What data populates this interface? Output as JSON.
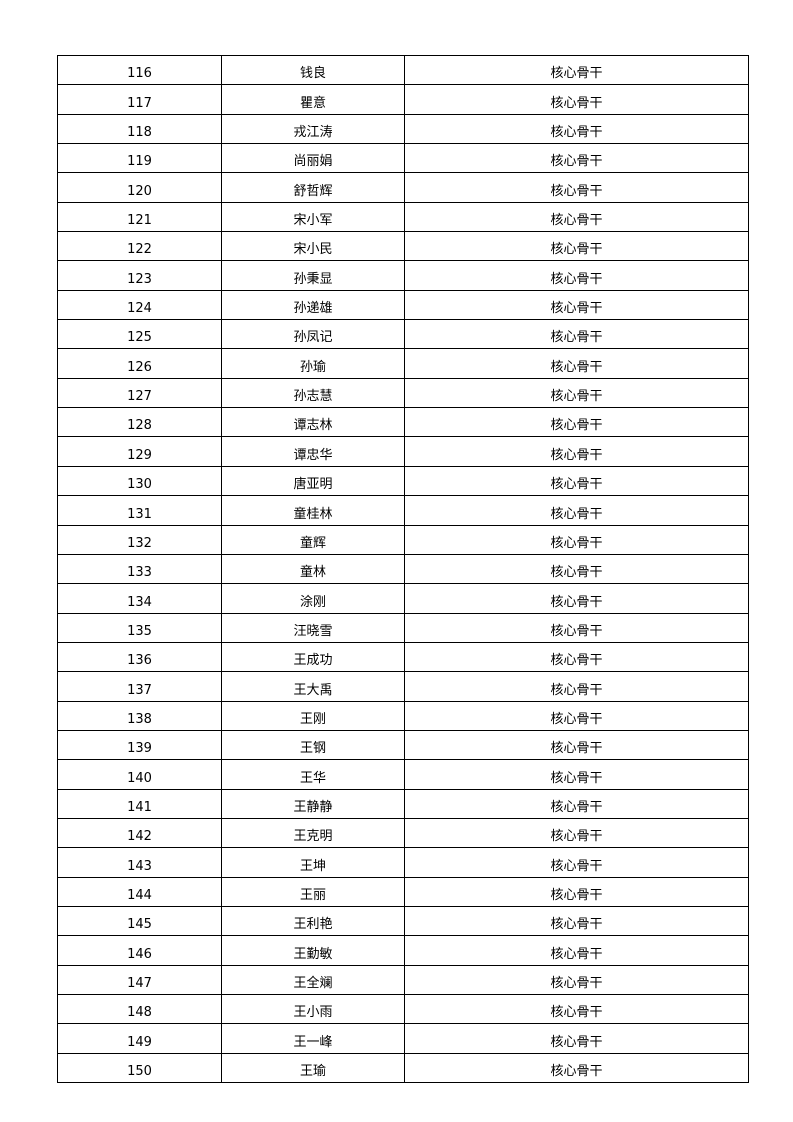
{
  "table": {
    "rows": [
      [
        "116",
        "钱良",
        "核心骨干"
      ],
      [
        "117",
        "瞿意",
        "核心骨干"
      ],
      [
        "118",
        "戎江涛",
        "核心骨干"
      ],
      [
        "119",
        "尚丽娟",
        "核心骨干"
      ],
      [
        "120",
        "舒哲辉",
        "核心骨干"
      ],
      [
        "121",
        "宋小军",
        "核心骨干"
      ],
      [
        "122",
        "宋小民",
        "核心骨干"
      ],
      [
        "123",
        "孙秉显",
        "核心骨干"
      ],
      [
        "124",
        "孙递雄",
        "核心骨干"
      ],
      [
        "125",
        "孙凤记",
        "核心骨干"
      ],
      [
        "126",
        "孙瑜",
        "核心骨干"
      ],
      [
        "127",
        "孙志慧",
        "核心骨干"
      ],
      [
        "128",
        "谭志林",
        "核心骨干"
      ],
      [
        "129",
        "谭忠华",
        "核心骨干"
      ],
      [
        "130",
        "唐亚明",
        "核心骨干"
      ],
      [
        "131",
        "童桂林",
        "核心骨干"
      ],
      [
        "132",
        "童辉",
        "核心骨干"
      ],
      [
        "133",
        "童林",
        "核心骨干"
      ],
      [
        "134",
        "涂刚",
        "核心骨干"
      ],
      [
        "135",
        "汪晓雪",
        "核心骨干"
      ],
      [
        "136",
        "王成功",
        "核心骨干"
      ],
      [
        "137",
        "王大禹",
        "核心骨干"
      ],
      [
        "138",
        "王刚",
        "核心骨干"
      ],
      [
        "139",
        "王钢",
        "核心骨干"
      ],
      [
        "140",
        "王华",
        "核心骨干"
      ],
      [
        "141",
        "王静静",
        "核心骨干"
      ],
      [
        "142",
        "王克明",
        "核心骨干"
      ],
      [
        "143",
        "王坤",
        "核心骨干"
      ],
      [
        "144",
        "王丽",
        "核心骨干"
      ],
      [
        "145",
        "王利艳",
        "核心骨干"
      ],
      [
        "146",
        "王勤敏",
        "核心骨干"
      ],
      [
        "147",
        "王全斓",
        "核心骨干"
      ],
      [
        "148",
        "王小雨",
        "核心骨干"
      ],
      [
        "149",
        "王一峰",
        "核心骨干"
      ],
      [
        "150",
        "王瑜",
        "核心骨干"
      ]
    ]
  }
}
